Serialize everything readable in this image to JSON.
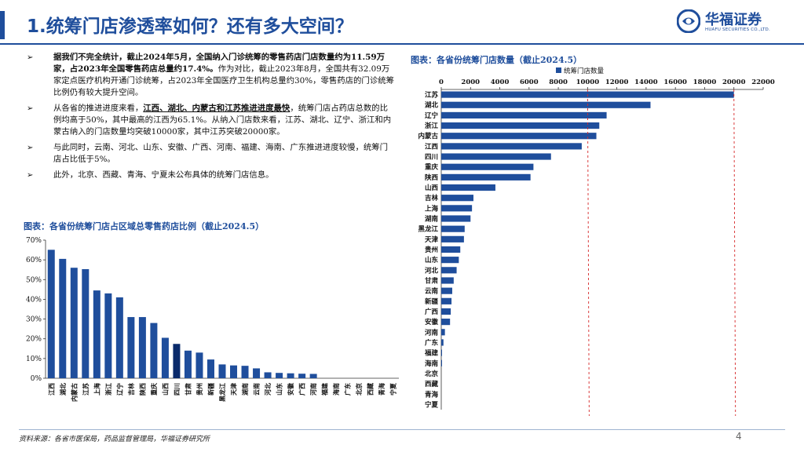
{
  "header": {
    "title": "1.统筹门店渗透率如何？还有多大空间？",
    "logo_cn": "华福证券",
    "logo_en": "HUAFU SECURITIES CO.,LTD.",
    "accent_color": "#1f4e9c"
  },
  "bullets": [
    {
      "mark": "➢",
      "bold": "据我们不完全统计，截止2024年5月，全国纳入门诊统筹的零售药店门店数量约为11.59万家，占2023年全国零售药店总量约17.4%。",
      "text": "作为对比，截止2023年8月，全国共有32.09万家定点医疗机构开通门诊统筹，占2023年全国医疗卫生机构总量约30%，零售药店的门诊统筹比例仍有较大提升空间。"
    },
    {
      "mark": "➢",
      "pre": "从各省的推进进度来看，",
      "underline": "江西、湖北、内蒙古和江苏推进进度最快",
      "post": "，统筹门店占药店总数的比例均高于50%，其中最高的江西为65.1%。从纳入门店数来看，江苏、湖北、辽宁、浙江和内蒙古纳入的门店数量均突破10000家，其中江苏突破20000家。"
    },
    {
      "mark": "➢",
      "text": "与此同时，云南、河北、山东、安徽、广西、河南、福建、海南、广东推进进度较慢，统筹门店占比低于5%。"
    },
    {
      "mark": "➢",
      "text": "此外，北京、西藏、青海、宁夏未公布具体的统筹门店信息。"
    }
  ],
  "chart_data": [
    {
      "type": "bar",
      "title": "图表：各省份统筹门店占区域总零售药店比例（截止2024.5）",
      "categories": [
        "江西",
        "湖北",
        "内蒙古",
        "江苏",
        "上海",
        "浙江",
        "辽宁",
        "吉林",
        "陕西",
        "重庆",
        "山西",
        "四川",
        "甘肃",
        "贵州",
        "新疆",
        "黑龙江",
        "天津",
        "湖南",
        "云南",
        "河北",
        "山东",
        "安徽",
        "广西",
        "河南",
        "福建",
        "海南",
        "广东",
        "北京",
        "西藏",
        "青海",
        "宁夏"
      ],
      "values": [
        65.1,
        60.5,
        56,
        55.3,
        44.5,
        43,
        41,
        31,
        31,
        28,
        20.5,
        17.4,
        14,
        13,
        9.5,
        7,
        6.5,
        6.3,
        5,
        3,
        2.7,
        2.5,
        2.3,
        2.2,
        0,
        0,
        0,
        0,
        0,
        0,
        0
      ],
      "highlight_index": 11,
      "bar_color": "#1f4e9c",
      "highlight_color": "#0a2a6b",
      "ylim": [
        0,
        70
      ],
      "yticks": [
        "0%",
        "10%",
        "20%",
        "30%",
        "40%",
        "50%",
        "60%",
        "70%"
      ],
      "grid": false
    },
    {
      "type": "bar",
      "orientation": "horizontal",
      "title": "图表：各省份统筹门店数量（截止2024.5）",
      "legend": "统筹门店数量",
      "legend_position": "top",
      "categories": [
        "江苏",
        "湖北",
        "辽宁",
        "浙江",
        "内蒙古",
        "江西",
        "四川",
        "重庆",
        "陕西",
        "山西",
        "吉林",
        "上海",
        "湖南",
        "黑龙江",
        "天津",
        "贵州",
        "山东",
        "河北",
        "甘肃",
        "云南",
        "新疆",
        "广西",
        "安徽",
        "河南",
        "广东",
        "福建",
        "海南",
        "北京",
        "西藏",
        "青海",
        "宁夏"
      ],
      "values": [
        20000,
        14300,
        11300,
        10800,
        10600,
        9600,
        7500,
        6300,
        6100,
        3700,
        2200,
        2100,
        2000,
        1600,
        1550,
        1300,
        1200,
        1050,
        850,
        750,
        700,
        650,
        600,
        250,
        150,
        20,
        15,
        0,
        0,
        0,
        0
      ],
      "xlim": [
        0,
        22000
      ],
      "xticks": [
        0,
        2000,
        4000,
        6000,
        8000,
        10000,
        12000,
        14000,
        16000,
        18000,
        20000,
        22000
      ],
      "reference_lines": [
        10000,
        20000
      ],
      "reference_color": "#d62728",
      "bar_color": "#1f4e9c"
    }
  ],
  "footer": {
    "source": "资料来源：各省市医保局，药品监督管理局，华福证券研究所",
    "page": "4"
  }
}
